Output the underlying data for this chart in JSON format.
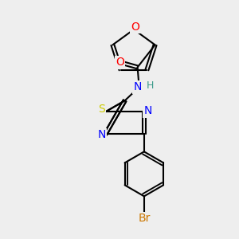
{
  "bg_color": "#eeeeee",
  "bond_color": "#000000",
  "bond_lw": 1.5,
  "atom_colors": {
    "O": "#ff0000",
    "N": "#0000ff",
    "S": "#cccc00",
    "Br": "#cc7700",
    "C": "#000000",
    "H": "#3a9a8a"
  },
  "font_size": 9,
  "font_size_small": 8
}
